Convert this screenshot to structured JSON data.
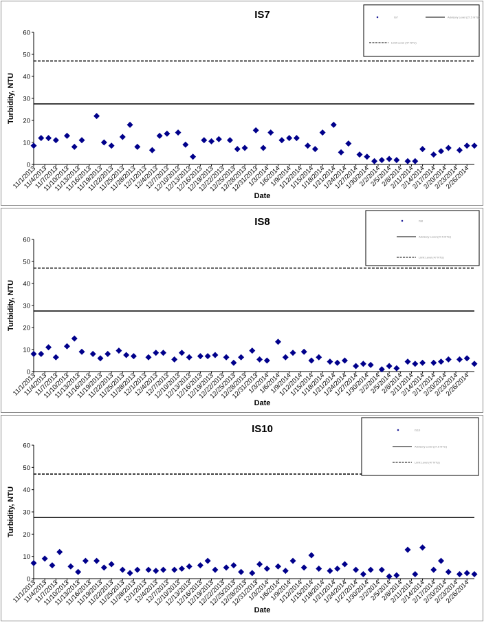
{
  "dates": [
    "11/1/2013",
    "11/4/2013",
    "11/7/2013",
    "11/10/2013",
    "11/13/2013",
    "11/16/2013",
    "11/19/2013",
    "11/22/2013",
    "11/25/2013",
    "11/28/2013",
    "12/1/2013",
    "12/4/2013",
    "12/7/2013",
    "12/10/2013",
    "12/13/2013",
    "12/16/2013",
    "12/19/2013",
    "12/22/2013",
    "12/25/2013",
    "12/28/2013",
    "12/31/2013",
    "1/3/2014",
    "1/6/2014",
    "1/9/2014",
    "1/12/2014",
    "1/15/2014",
    "1/18/2014",
    "1/21/2014",
    "1/24/2014",
    "1/27/2014",
    "1/30/2014",
    "2/2/2014",
    "2/5/2014",
    "2/8/2014",
    "2/11/2014",
    "2/14/2014",
    "2/17/2014",
    "2/20/2014",
    "2/23/2014",
    "2/26/2014"
  ],
  "chart_data": [
    {
      "type": "scatter",
      "title": "IS7",
      "xlabel": "Date",
      "ylabel": "Turbidity, NTU",
      "ylim": [
        0,
        60
      ],
      "yticks": [
        0,
        10,
        20,
        30,
        40,
        50,
        60
      ],
      "xlim": [
        "11/1/2013",
        "2/28/2014"
      ],
      "grid": false,
      "legend_position": "top-right",
      "legend_entries": [
        "IS7",
        "Advisory Level (27.5 NTU)",
        "Limit Level (47 NTU)"
      ],
      "reference_lines": [
        {
          "value": 27.5,
          "style": "solid"
        },
        {
          "value": 47,
          "style": "dashed"
        }
      ],
      "series": [
        {
          "marker": "diamond",
          "color": "#00008B",
          "dates": [
            "11/1/2013",
            "11/3/2013",
            "11/5/2013",
            "11/7/2013",
            "11/10/2013",
            "11/12/2013",
            "11/14/2013",
            "11/18/2013",
            "11/20/2013",
            "11/22/2013",
            "11/25/2013",
            "11/27/2013",
            "11/29/2013",
            "12/3/2013",
            "12/5/2013",
            "12/7/2013",
            "12/10/2013",
            "12/12/2013",
            "12/14/2013",
            "12/17/2013",
            "12/19/2013",
            "12/21/2013",
            "12/24/2013",
            "12/26/2013",
            "12/28/2013",
            "12/31/2013",
            "1/2/2014",
            "1/4/2014",
            "1/7/2014",
            "1/9/2014",
            "1/11/2014",
            "1/14/2014",
            "1/16/2014",
            "1/18/2014",
            "1/21/2014",
            "1/23/2014",
            "1/25/2014",
            "1/28/2014",
            "1/30/2014",
            "2/1/2014",
            "2/3/2014",
            "2/5/2014",
            "2/7/2014",
            "2/10/2014",
            "2/12/2014",
            "2/14/2014",
            "2/17/2014",
            "2/19/2014",
            "2/21/2014",
            "2/24/2014",
            "2/26/2014",
            "2/28/2014"
          ],
          "values": [
            8.5,
            12,
            12,
            11,
            13,
            8,
            11,
            22,
            10,
            8.5,
            12.5,
            18,
            8,
            6.5,
            13,
            14,
            14.5,
            9,
            3.5,
            11,
            10.5,
            11.5,
            11,
            7,
            7.5,
            15.5,
            7.5,
            14.5,
            11,
            12,
            12,
            8.5,
            7,
            14.5,
            18,
            5.5,
            9.5,
            4.5,
            3.5,
            1.5,
            2,
            2.5,
            2,
            1.5,
            1.5,
            7,
            4.5,
            6,
            7.5,
            6.5,
            8.5,
            8.5
          ]
        }
      ]
    },
    {
      "type": "scatter",
      "title": "IS8",
      "xlabel": "Date",
      "ylabel": "Turbidity, NTU",
      "ylim": [
        0,
        60
      ],
      "yticks": [
        0,
        10,
        20,
        30,
        40,
        50,
        60
      ],
      "xlim": [
        "11/1/2013",
        "2/28/2014"
      ],
      "grid": false,
      "legend_position": "top-right",
      "legend_entries": [
        "IS8",
        "Advisory Level (27.5 NTU)",
        "Limit Level (47 NTU)"
      ],
      "reference_lines": [
        {
          "value": 27.5,
          "style": "solid"
        },
        {
          "value": 47,
          "style": "dashed"
        }
      ],
      "series": [
        {
          "marker": "diamond",
          "color": "#00008B",
          "dates": [
            "11/1/2013",
            "11/3/2013",
            "11/5/2013",
            "11/7/2013",
            "11/10/2013",
            "11/12/2013",
            "11/14/2013",
            "11/17/2013",
            "11/19/2013",
            "11/21/2013",
            "11/24/2013",
            "11/26/2013",
            "11/28/2013",
            "12/2/2013",
            "12/4/2013",
            "12/6/2013",
            "12/9/2013",
            "12/11/2013",
            "12/13/2013",
            "12/16/2013",
            "12/18/2013",
            "12/20/2013",
            "12/23/2013",
            "12/25/2013",
            "12/27/2013",
            "12/30/2013",
            "1/1/2014",
            "1/3/2014",
            "1/6/2014",
            "1/8/2014",
            "1/10/2014",
            "1/13/2014",
            "1/15/2014",
            "1/17/2014",
            "1/20/2014",
            "1/22/2014",
            "1/24/2014",
            "1/27/2014",
            "1/29/2014",
            "1/31/2014",
            "2/3/2014",
            "2/5/2014",
            "2/7/2014",
            "2/10/2014",
            "2/12/2014",
            "2/14/2014",
            "2/17/2014",
            "2/19/2014",
            "2/21/2014",
            "2/24/2014",
            "2/26/2014",
            "2/28/2014"
          ],
          "values": [
            8,
            8,
            11,
            6.5,
            11.5,
            15,
            9,
            8,
            6,
            8,
            9.5,
            7.5,
            7,
            6.5,
            8.5,
            8.5,
            5.5,
            8.5,
            6.5,
            7,
            7,
            7.5,
            6.5,
            4,
            6.5,
            9.5,
            5.5,
            5,
            13.5,
            6.5,
            8.5,
            9,
            5,
            6.5,
            4.5,
            4,
            5,
            2.5,
            3.5,
            3,
            1,
            2.5,
            1.5,
            4.5,
            3.5,
            4,
            4,
            4.5,
            5.5,
            5.5,
            6,
            3.5
          ]
        }
      ]
    },
    {
      "type": "scatter",
      "title": "IS10",
      "xlabel": "Date",
      "ylabel": "Turbidity, NTU",
      "ylim": [
        0,
        60
      ],
      "yticks": [
        0,
        10,
        20,
        30,
        40,
        50,
        60
      ],
      "xlim": [
        "11/1/2013",
        "2/28/2014"
      ],
      "grid": false,
      "legend_position": "top-right",
      "legend_entries": [
        "IS10",
        "Advisory Level (27.5 NTU)",
        "Limit Level (47 NTU)"
      ],
      "reference_lines": [
        {
          "value": 27.5,
          "style": "solid"
        },
        {
          "value": 47,
          "style": "dashed"
        }
      ],
      "series": [
        {
          "marker": "diamond",
          "color": "#00008B",
          "dates": [
            "11/1/2013",
            "11/4/2013",
            "11/6/2013",
            "11/8/2013",
            "11/11/2013",
            "11/13/2013",
            "11/15/2013",
            "11/18/2013",
            "11/20/2013",
            "11/22/2013",
            "11/25/2013",
            "11/27/2013",
            "11/29/2013",
            "12/2/2013",
            "12/4/2013",
            "12/6/2013",
            "12/9/2013",
            "12/11/2013",
            "12/13/2013",
            "12/16/2013",
            "12/18/2013",
            "12/20/2013",
            "12/23/2013",
            "12/25/2013",
            "12/27/2013",
            "12/30/2013",
            "1/1/2014",
            "1/3/2014",
            "1/6/2014",
            "1/8/2014",
            "1/10/2014",
            "1/13/2014",
            "1/15/2014",
            "1/17/2014",
            "1/20/2014",
            "1/22/2014",
            "1/24/2014",
            "1/27/2014",
            "1/29/2014",
            "1/31/2014",
            "2/3/2014",
            "2/5/2014",
            "2/7/2014",
            "2/10/2014",
            "2/12/2014",
            "2/14/2014",
            "2/17/2014",
            "2/19/2014",
            "2/21/2014",
            "2/24/2014",
            "2/26/2014",
            "2/28/2014"
          ],
          "values": [
            7,
            9,
            6,
            12,
            5.5,
            3,
            8,
            8,
            5,
            6.5,
            4,
            2.5,
            4,
            4,
            3.5,
            4,
            4,
            4.5,
            5.5,
            6,
            8,
            4,
            5,
            6,
            3,
            2.5,
            6.5,
            4.5,
            5.5,
            3.5,
            8,
            5,
            10.5,
            4.5,
            3.5,
            4.5,
            6.5,
            4,
            2,
            4,
            4,
            1,
            1.5,
            13,
            2,
            14,
            4,
            8,
            3,
            2,
            2.5,
            2
          ]
        }
      ]
    }
  ]
}
